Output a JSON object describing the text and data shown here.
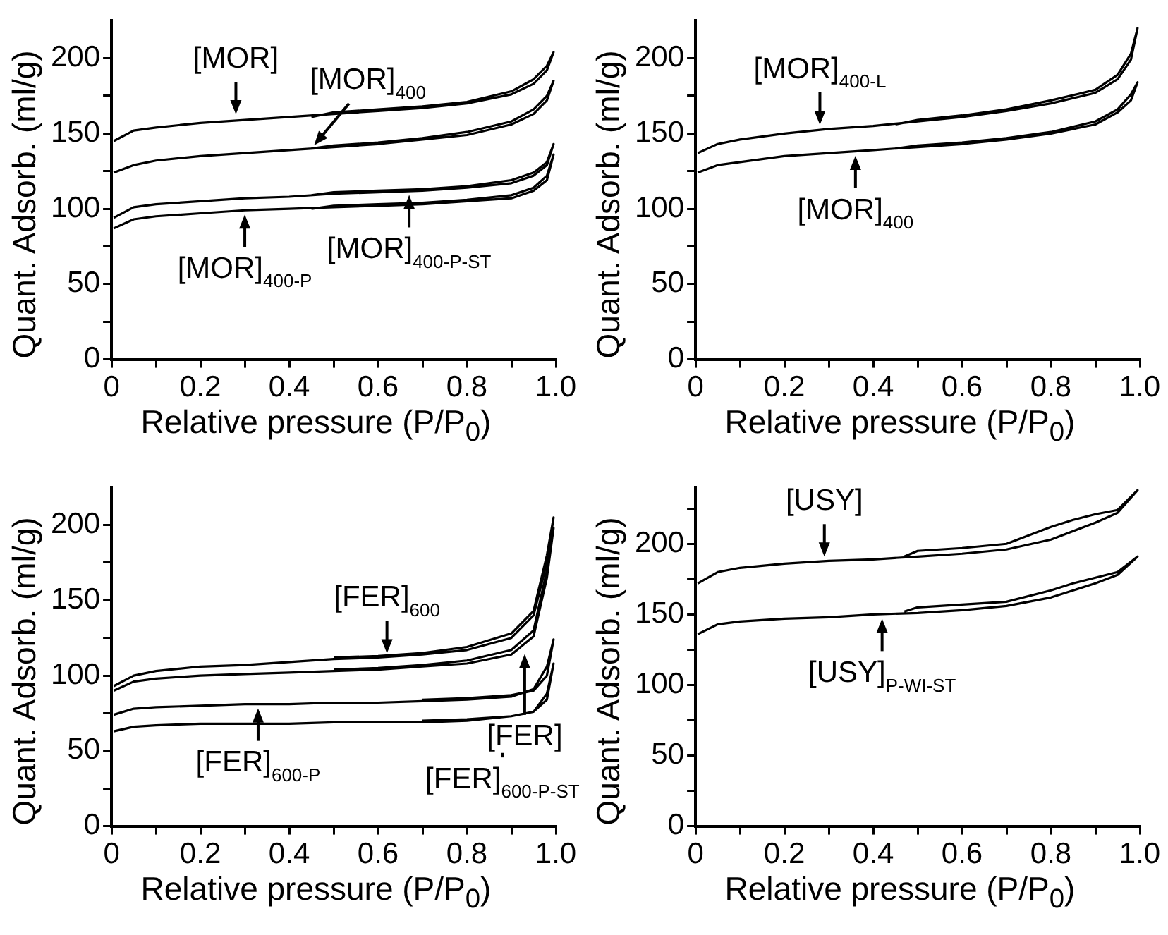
{
  "chart_data": [
    {
      "type": "line",
      "xlabel": "Relative pressure (P/P$_{0}$)",
      "ylabel": "Quant. Adsorb. (ml/g)",
      "xlim": [
        0,
        1
      ],
      "ylim": [
        0,
        225
      ],
      "xticks": [
        0,
        {
          "value": 0.1,
          "label": null
        },
        0.2,
        {
          "value": 0.3,
          "label": null
        },
        0.4,
        {
          "value": 0.5,
          "label": null
        },
        0.6,
        {
          "value": 0.7,
          "label": null
        },
        0.8,
        {
          "value": 0.9,
          "label": null
        },
        {
          "value": 1,
          "label": "1.0"
        }
      ],
      "yticks": [
        0,
        {
          "value": 25,
          "label": null
        },
        50,
        {
          "value": 75,
          "label": null
        },
        100,
        {
          "value": 125,
          "label": null
        },
        150,
        {
          "value": 175,
          "label": null
        },
        200
      ],
      "marker": "none",
      "line_style": "solid",
      "series": [
        {
          "color": "#000000",
          "x": [
            0.005,
            0.05,
            0.1,
            0.2,
            0.3,
            0.4,
            0.5,
            0.6,
            0.7,
            0.8,
            0.9,
            0.95,
            0.98,
            0.995,
            0.98,
            0.95,
            0.9,
            0.8,
            0.7,
            0.6,
            0.5,
            0.45
          ],
          "values": [
            145,
            152,
            154,
            157,
            159,
            161,
            163,
            165,
            167,
            170,
            176,
            183,
            192,
            204,
            195,
            186,
            178,
            171,
            168,
            166,
            164,
            161
          ]
        },
        {
          "color": "#000000",
          "x": [
            0.005,
            0.05,
            0.1,
            0.2,
            0.3,
            0.4,
            0.5,
            0.6,
            0.7,
            0.8,
            0.9,
            0.95,
            0.98,
            0.995,
            0.98,
            0.95,
            0.9,
            0.8,
            0.7,
            0.6,
            0.5,
            0.45
          ],
          "values": [
            124,
            129,
            132,
            135,
            137,
            139,
            141,
            143,
            146,
            149,
            156,
            163,
            172,
            185,
            175,
            166,
            158,
            151,
            147,
            144,
            142,
            140
          ]
        },
        {
          "color": "#000000",
          "x": [
            0.005,
            0.05,
            0.1,
            0.2,
            0.3,
            0.4,
            0.5,
            0.6,
            0.7,
            0.8,
            0.9,
            0.95,
            0.98,
            0.995,
            0.98,
            0.95,
            0.9,
            0.8,
            0.7,
            0.6,
            0.5,
            0.45
          ],
          "values": [
            94,
            101,
            103,
            105,
            107,
            108,
            110,
            111,
            112,
            114,
            117,
            122,
            129,
            143,
            131,
            124,
            119,
            115,
            113,
            112,
            111,
            109
          ]
        },
        {
          "color": "#000000",
          "x": [
            0.005,
            0.05,
            0.1,
            0.2,
            0.3,
            0.4,
            0.5,
            0.6,
            0.7,
            0.8,
            0.9,
            0.95,
            0.98,
            0.995,
            0.98,
            0.95,
            0.9,
            0.8,
            0.7,
            0.6,
            0.5,
            0.45
          ],
          "values": [
            87,
            93,
            95,
            97,
            99,
            100,
            101,
            102,
            103,
            105,
            107,
            112,
            119,
            136,
            122,
            114,
            109,
            106,
            104,
            103,
            102,
            100
          ]
        }
      ],
      "annotations": [
        {
          "text": "[MOR]",
          "x": 0.28,
          "y": 160
        },
        {
          "text": "[MOR]$_{400}$",
          "x": 0.45,
          "y": 140
        },
        {
          "text": "[MOR]$_{400-P-ST}$",
          "x": 0.67,
          "y": 112
        },
        {
          "text": "[MOR]$_{400-P}$",
          "x": 0.3,
          "y": 99
        }
      ]
    },
    {
      "type": "line",
      "xlabel": "Relative pressure (P/P$_{0}$)",
      "ylabel": "Quant. Adsorb. (ml/g)",
      "xlim": [
        0,
        1
      ],
      "ylim": [
        0,
        225
      ],
      "xticks": [
        0,
        {
          "value": 0.1,
          "label": null
        },
        0.2,
        {
          "value": 0.3,
          "label": null
        },
        0.4,
        {
          "value": 0.5,
          "label": null
        },
        0.6,
        {
          "value": 0.7,
          "label": null
        },
        0.8,
        {
          "value": 0.9,
          "label": null
        },
        {
          "value": 1,
          "label": "1.0"
        }
      ],
      "yticks": [
        0,
        {
          "value": 25,
          "label": null
        },
        50,
        {
          "value": 75,
          "label": null
        },
        100,
        {
          "value": 125,
          "label": null
        },
        150,
        {
          "value": 175,
          "label": null
        },
        200
      ],
      "marker": "none",
      "line_style": "solid",
      "series": [
        {
          "color": "#000000",
          "x": [
            0.005,
            0.05,
            0.1,
            0.2,
            0.3,
            0.4,
            0.5,
            0.6,
            0.7,
            0.8,
            0.9,
            0.95,
            0.98,
            0.995,
            0.98,
            0.95,
            0.9,
            0.8,
            0.7,
            0.6,
            0.5,
            0.45
          ],
          "values": [
            137,
            143,
            146,
            150,
            153,
            155,
            158,
            161,
            165,
            170,
            177,
            186,
            199,
            220,
            203,
            189,
            179,
            172,
            166,
            162,
            159,
            156
          ]
        },
        {
          "color": "#000000",
          "x": [
            0.005,
            0.05,
            0.1,
            0.2,
            0.3,
            0.4,
            0.5,
            0.6,
            0.7,
            0.8,
            0.9,
            0.95,
            0.98,
            0.995,
            0.98,
            0.95,
            0.9,
            0.8,
            0.7,
            0.6,
            0.5,
            0.45
          ],
          "values": [
            124,
            129,
            131,
            135,
            137,
            139,
            141,
            143,
            146,
            150,
            156,
            164,
            172,
            184,
            176,
            166,
            158,
            151,
            147,
            144,
            142,
            140
          ]
        }
      ],
      "annotations": [
        {
          "text": "[MOR]$_{400-L}$",
          "x": 0.28,
          "y": 153
        },
        {
          "text": "[MOR]$_{400}$",
          "x": 0.36,
          "y": 138
        }
      ]
    },
    {
      "type": "line",
      "xlabel": "Relative pressure (P/P$_{0}$)",
      "ylabel": "Quant. Adsorb. (ml/g)",
      "xlim": [
        0,
        1
      ],
      "ylim": [
        0,
        225
      ],
      "xticks": [
        0,
        {
          "value": 0.1,
          "label": null
        },
        0.2,
        {
          "value": 0.3,
          "label": null
        },
        0.4,
        {
          "value": 0.5,
          "label": null
        },
        0.6,
        {
          "value": 0.7,
          "label": null
        },
        0.8,
        {
          "value": 0.9,
          "label": null
        },
        {
          "value": 1,
          "label": "1.0"
        }
      ],
      "yticks": [
        0,
        {
          "value": 25,
          "label": null
        },
        50,
        {
          "value": 75,
          "label": null
        },
        100,
        {
          "value": 125,
          "label": null
        },
        150,
        {
          "value": 175,
          "label": null
        },
        200
      ],
      "marker": "none",
      "line_style": "solid",
      "series": [
        {
          "color": "#000000",
          "x": [
            0.005,
            0.05,
            0.1,
            0.2,
            0.3,
            0.4,
            0.5,
            0.6,
            0.7,
            0.8,
            0.9,
            0.95,
            0.98,
            0.995,
            0.98,
            0.95,
            0.9,
            0.8,
            0.7,
            0.6,
            0.5
          ],
          "values": [
            93,
            100,
            103,
            106,
            107,
            109,
            111,
            112,
            114,
            117,
            125,
            140,
            175,
            205,
            180,
            143,
            128,
            119,
            115,
            113,
            112
          ]
        },
        {
          "color": "#000000",
          "x": [
            0.005,
            0.05,
            0.1,
            0.2,
            0.3,
            0.4,
            0.5,
            0.6,
            0.7,
            0.8,
            0.9,
            0.95,
            0.98,
            0.995,
            0.98,
            0.95,
            0.9,
            0.8,
            0.7,
            0.6,
            0.5
          ],
          "values": [
            90,
            96,
            98,
            100,
            101,
            102,
            103,
            104,
            106,
            108,
            114,
            126,
            165,
            198,
            170,
            130,
            117,
            110,
            107,
            105,
            104
          ]
        },
        {
          "color": "#000000",
          "x": [
            0.005,
            0.05,
            0.1,
            0.2,
            0.3,
            0.4,
            0.5,
            0.6,
            0.7,
            0.8,
            0.9,
            0.95,
            0.98,
            0.995,
            0.98,
            0.95,
            0.9,
            0.8,
            0.7
          ],
          "values": [
            74,
            78,
            79,
            80,
            81,
            81,
            82,
            82,
            83,
            84,
            86,
            91,
            106,
            124,
            100,
            90,
            87,
            85,
            84
          ]
        },
        {
          "color": "#000000",
          "x": [
            0.005,
            0.05,
            0.1,
            0.2,
            0.3,
            0.4,
            0.5,
            0.6,
            0.7,
            0.8,
            0.9,
            0.95,
            0.98,
            0.995,
            0.98,
            0.95,
            0.9,
            0.8,
            0.7
          ],
          "values": [
            63,
            66,
            67,
            68,
            68,
            68,
            69,
            69,
            69,
            70,
            73,
            76,
            88,
            108,
            84,
            76,
            73,
            71,
            70
          ]
        }
      ],
      "annotations": [
        {
          "text": "[FER]$_{600}$",
          "x": 0.62,
          "y": 112
        },
        {
          "text": "[FER]",
          "x": 0.93,
          "y": 117
        },
        {
          "text": "[FER]$_{600-P}$",
          "x": 0.33,
          "y": 81
        },
        {
          "text": "[FER]$_{600-P-ST}$",
          "x": 0.88,
          "y": 70
        }
      ]
    },
    {
      "type": "line",
      "xlabel": "Relative pressure (P/P$_{0}$)",
      "ylabel": "Quant. Adsorb. (ml/g)",
      "xlim": [
        0,
        1
      ],
      "ylim": [
        0,
        240
      ],
      "xticks": [
        0,
        {
          "value": 0.1,
          "label": null
        },
        0.2,
        {
          "value": 0.3,
          "label": null
        },
        0.4,
        {
          "value": 0.5,
          "label": null
        },
        0.6,
        {
          "value": 0.7,
          "label": null
        },
        0.8,
        {
          "value": 0.9,
          "label": null
        },
        {
          "value": 1,
          "label": "1.0"
        }
      ],
      "yticks": [
        0,
        {
          "value": 25,
          "label": null
        },
        50,
        {
          "value": 75,
          "label": null
        },
        100,
        {
          "value": 125,
          "label": null
        },
        150,
        {
          "value": 175,
          "label": null
        },
        200,
        {
          "value": 225,
          "label": null
        }
      ],
      "marker": "none",
      "line_style": "solid",
      "series": [
        {
          "color": "#000000",
          "x": [
            0.005,
            0.05,
            0.1,
            0.2,
            0.3,
            0.4,
            0.5,
            0.6,
            0.7,
            0.8,
            0.9,
            0.95,
            0.995,
            0.95,
            0.9,
            0.85,
            0.8,
            0.7,
            0.6,
            0.5,
            0.47
          ],
          "values": [
            172,
            180,
            183,
            186,
            188,
            189,
            191,
            193,
            196,
            203,
            215,
            222,
            238,
            224,
            221,
            217,
            212,
            200,
            197,
            195,
            191
          ]
        },
        {
          "color": "#000000",
          "x": [
            0.005,
            0.05,
            0.1,
            0.2,
            0.3,
            0.4,
            0.5,
            0.6,
            0.7,
            0.8,
            0.9,
            0.95,
            0.995,
            0.95,
            0.9,
            0.85,
            0.8,
            0.7,
            0.6,
            0.5,
            0.47
          ],
          "values": [
            136,
            143,
            145,
            147,
            148,
            150,
            151,
            153,
            156,
            162,
            172,
            178,
            191,
            180,
            176,
            172,
            167,
            159,
            157,
            155,
            152
          ]
        }
      ],
      "annotations": [
        {
          "text": "[USY]",
          "x": 0.29,
          "y": 188
        },
        {
          "text": "[USY]$_{P-WI-ST}$",
          "x": 0.42,
          "y": 150
        }
      ]
    }
  ]
}
